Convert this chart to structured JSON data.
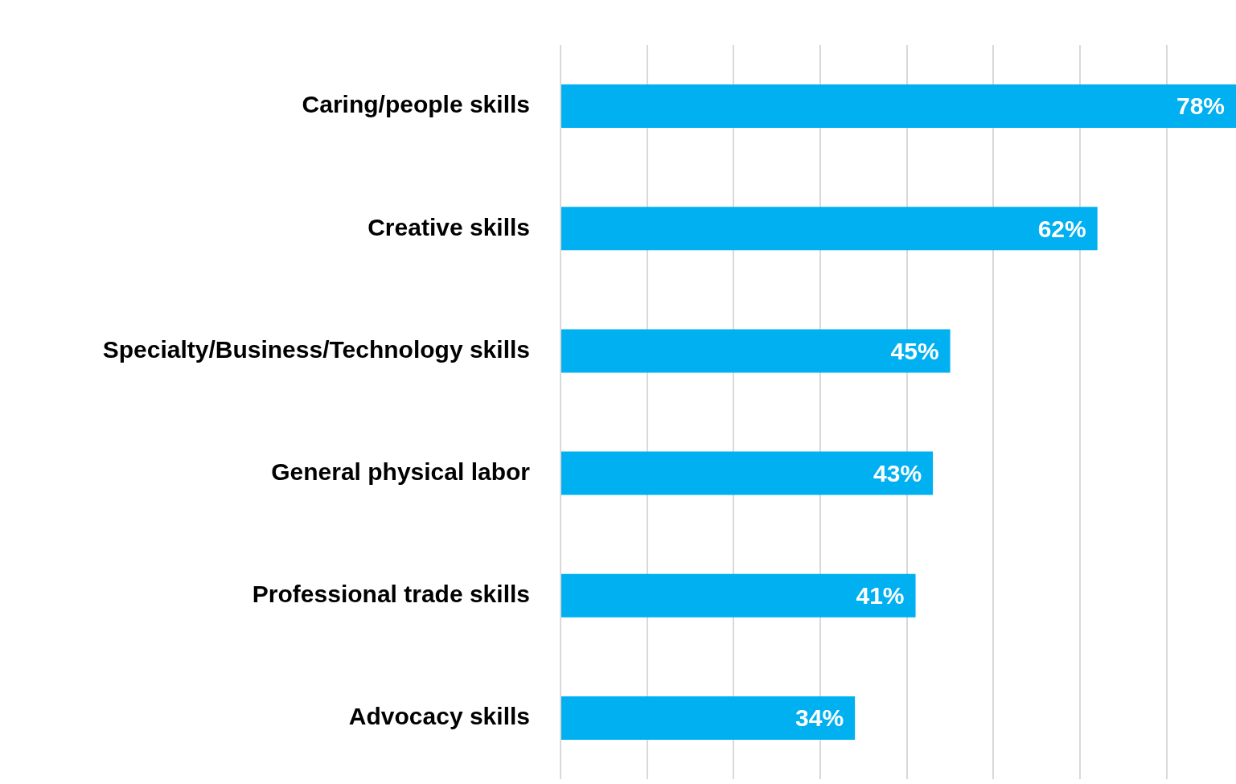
{
  "chart_data": {
    "type": "bar",
    "orientation": "horizontal",
    "categories": [
      "Caring/people skills",
      "Creative skills",
      "Specialty/Business/Technology skills",
      "General physical labor",
      "Professional trade skills",
      "Advocacy skills"
    ],
    "values": [
      78,
      62,
      45,
      43,
      41,
      34
    ],
    "color": "#00b0f0",
    "value_labels": [
      "78%",
      "62%",
      "45%",
      "43%",
      "41%",
      "34%"
    ],
    "xlim": [
      0,
      78
    ],
    "xticks": [
      {
        "value": 0,
        "label": null
      },
      {
        "value": 10,
        "label": null
      },
      {
        "value": 20,
        "label": null
      },
      {
        "value": 30,
        "label": null
      },
      {
        "value": 40,
        "label": null
      },
      {
        "value": 50,
        "label": null
      },
      {
        "value": 60,
        "label": null
      },
      {
        "value": 70,
        "label": null
      }
    ],
    "grid": "x",
    "tick_labels": "y",
    "legend": false
  }
}
